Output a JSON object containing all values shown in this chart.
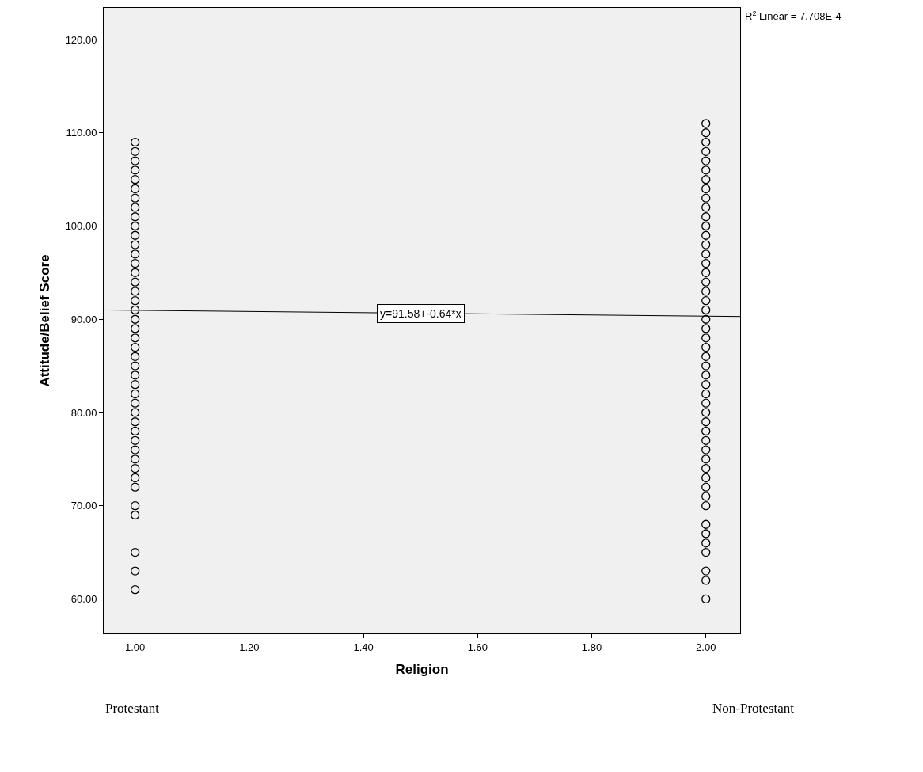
{
  "chart_data": {
    "type": "scatter",
    "xlabel": "Religion",
    "ylabel": "Attitude/Belief Score",
    "xlim": [
      0.945,
      2.06
    ],
    "ylim": [
      56.3,
      123.4
    ],
    "xticks": [
      {
        "value": 1,
        "label": "1.00"
      },
      {
        "value": 1.2,
        "label": "1.20"
      },
      {
        "value": 1.4,
        "label": "1.40"
      },
      {
        "value": 1.6,
        "label": "1.60"
      },
      {
        "value": 1.8,
        "label": "1.80"
      },
      {
        "value": 2,
        "label": "2.00"
      }
    ],
    "yticks": [
      {
        "value": 60,
        "label": "60.00"
      },
      {
        "value": 70,
        "label": "70.00"
      },
      {
        "value": 80,
        "label": "80.00"
      },
      {
        "value": 90,
        "label": "90.00"
      },
      {
        "value": 100,
        "label": "100.00"
      },
      {
        "value": 110,
        "label": "110.00"
      },
      {
        "value": 120,
        "label": "120.00"
      }
    ],
    "grid": false,
    "marker": "circle",
    "series": [
      {
        "color": "#000000",
        "x": [
          1,
          1,
          1,
          1,
          1,
          1,
          1,
          1,
          1,
          1,
          1,
          1,
          1,
          1,
          1,
          1,
          1,
          1,
          1,
          1,
          1,
          1,
          1,
          1,
          1,
          1,
          1,
          1,
          1,
          1,
          1,
          1,
          1,
          1,
          1,
          1,
          1,
          1,
          1,
          1,
          1,
          1,
          1,
          2,
          2,
          2,
          2,
          2,
          2,
          2,
          2,
          2,
          2,
          2,
          2,
          2,
          2,
          2,
          2,
          2,
          2,
          2,
          2,
          2,
          2,
          2,
          2,
          2,
          2,
          2,
          2,
          2,
          2,
          2,
          2,
          2,
          2,
          2,
          2,
          2,
          2,
          2,
          2,
          2,
          2,
          2,
          2,
          2,
          2,
          2,
          2,
          2
        ],
        "values": [
          61,
          63,
          65,
          69,
          70,
          72,
          73,
          74,
          75,
          76,
          77,
          78,
          79,
          80,
          81,
          82,
          83,
          84,
          85,
          86,
          87,
          88,
          89,
          90,
          91,
          92,
          93,
          94,
          95,
          96,
          97,
          98,
          99,
          100,
          101,
          102,
          103,
          104,
          105,
          106,
          107,
          108,
          109,
          60,
          62,
          63,
          65,
          66,
          67,
          68,
          70,
          71,
          72,
          73,
          74,
          75,
          76,
          77,
          78,
          79,
          80,
          81,
          82,
          83,
          84,
          85,
          86,
          87,
          88,
          89,
          90,
          91,
          92,
          93,
          94,
          95,
          96,
          97,
          98,
          99,
          100,
          101,
          102,
          103,
          104,
          105,
          106,
          107,
          108,
          109,
          110,
          111
        ]
      },
      {
        "type": "line",
        "color": "#000000",
        "marker": "none",
        "x": [
          0.945,
          2.06
        ],
        "values": [
          91.0,
          90.3
        ]
      }
    ],
    "annotations": [
      {
        "text": "y=91.58+-0.64*x",
        "x": 1.5,
        "y": 90.62
      },
      "R$^{2}$ Linear = 7.708E-4",
      "Protestant",
      "Non-Protestant"
    ]
  }
}
